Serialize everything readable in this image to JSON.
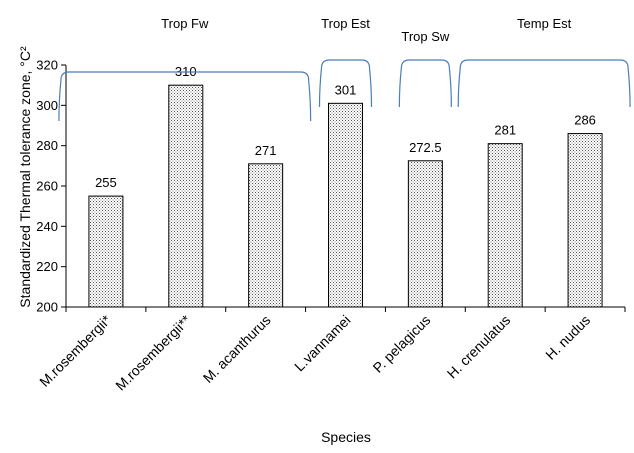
{
  "chart_data": {
    "type": "bar",
    "categories": [
      "M.rosembergii*",
      "M.rosembergii**",
      "M. acanthurus",
      "L.vannamei",
      "P. pelagicus",
      "H. crenulatus",
      "H. nudus"
    ],
    "values": [
      255,
      310,
      271,
      301,
      272.5,
      281,
      286
    ],
    "data_labels": [
      "255",
      "310",
      "271",
      "301",
      "272.5",
      "281",
      "286"
    ],
    "xlabel": "Species",
    "ylabel": "Standardized Thermal tolerance zone, °C²",
    "ylim": [
      200,
      320
    ],
    "yticks": [
      200,
      220,
      240,
      260,
      280,
      300,
      320
    ],
    "grid": false,
    "bar_fill": "dotted",
    "groups": [
      {
        "label": "Trop Fw",
        "from": 0,
        "to": 2
      },
      {
        "label": "Trop Est",
        "from": 3,
        "to": 3
      },
      {
        "label": "Trop Sw",
        "from": 4,
        "to": 4
      },
      {
        "label": "Temp  Est",
        "from": 5,
        "to": 6
      }
    ]
  },
  "colors": {
    "bar_stroke": "#000000",
    "bar_dots": "#555555",
    "brace": "#4a7fb8"
  }
}
